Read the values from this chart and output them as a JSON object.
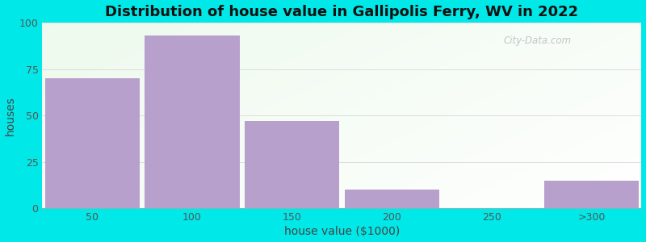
{
  "title": "Distribution of house value in Gallipolis Ferry, WV in 2022",
  "xlabel": "house value ($1000)",
  "ylabel": "houses",
  "bar_labels": [
    "50",
    "100",
    "150",
    "200",
    "250",
    ">300"
  ],
  "bar_heights": [
    70,
    93,
    47,
    10,
    0,
    15
  ],
  "bar_color": "#b8a0cc",
  "ylim": [
    0,
    100
  ],
  "yticks": [
    0,
    25,
    50,
    75,
    100
  ],
  "background_color": "#00e8e8",
  "title_fontsize": 13,
  "axis_label_fontsize": 10,
  "tick_fontsize": 9,
  "watermark_text": "City-Data.com",
  "grid_color": "#dddddd",
  "left_edges": [
    0,
    1,
    2,
    3,
    4,
    5
  ],
  "bar_width": 0.95
}
